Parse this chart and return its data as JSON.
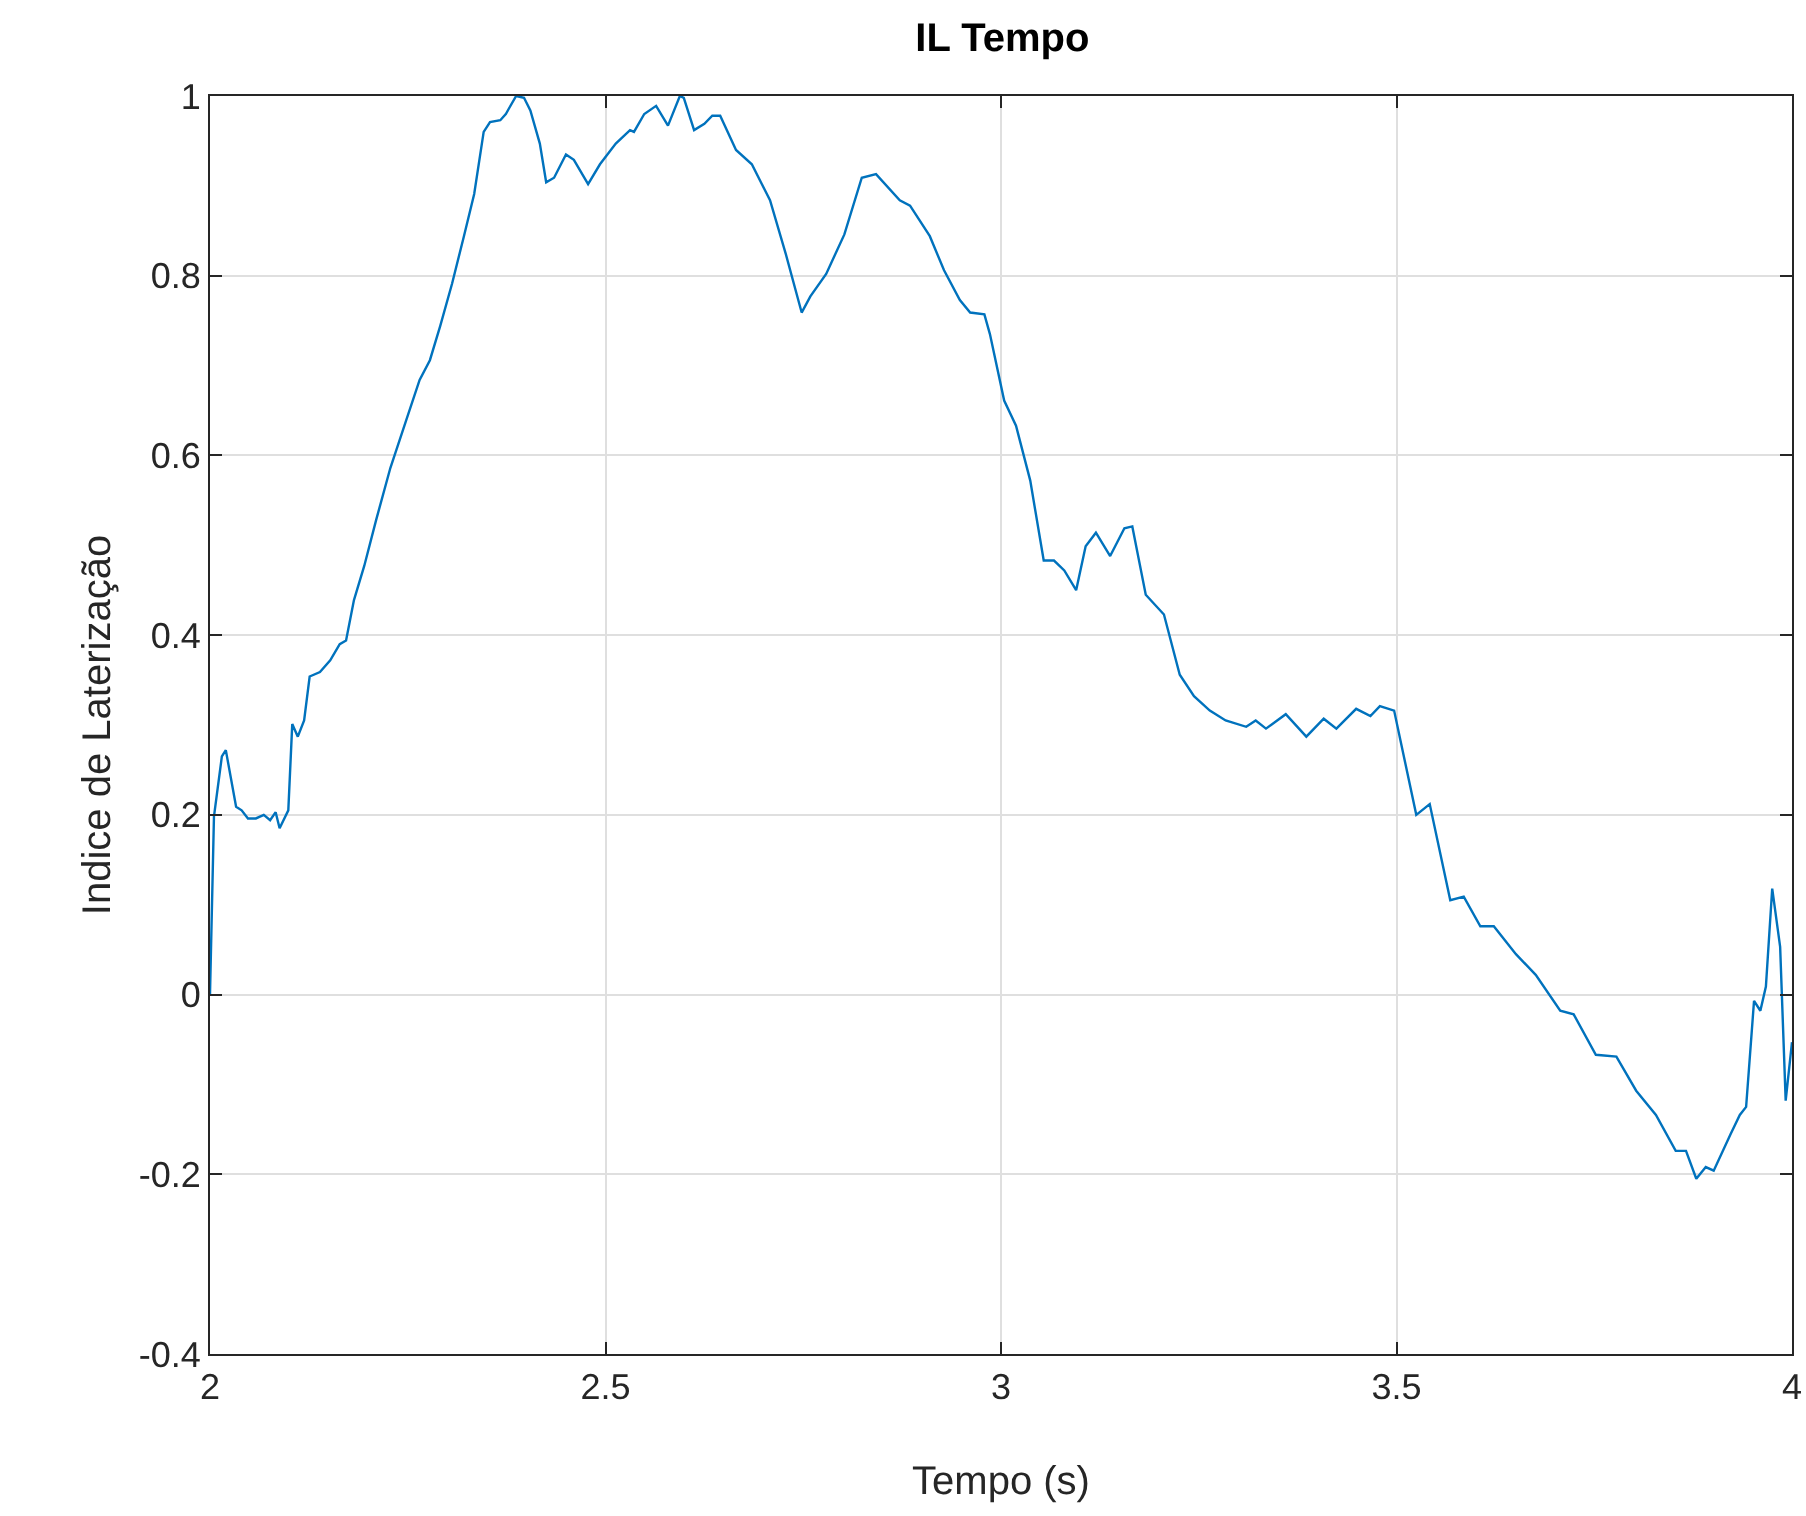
{
  "chart_data": {
    "type": "line",
    "title": "IL Tempo",
    "xlabel": "Tempo (s)",
    "ylabel": "Indice de Laterização",
    "x": [
      2.0,
      2.005,
      2.015,
      2.02,
      2.033,
      2.04,
      2.048,
      2.058,
      2.068,
      2.076,
      2.083,
      2.088,
      2.099,
      2.104,
      2.111,
      2.119,
      2.126,
      2.139,
      2.152,
      2.164,
      2.172,
      2.182,
      2.195,
      2.21,
      2.228,
      2.248,
      2.265,
      2.278,
      2.291,
      2.306,
      2.321,
      2.334,
      2.346,
      2.354,
      2.367,
      2.374,
      2.387,
      2.397,
      2.405,
      2.417,
      2.425,
      2.435,
      2.45,
      2.46,
      2.478,
      2.493,
      2.513,
      2.531,
      2.536,
      2.549,
      2.564,
      2.579,
      2.594,
      2.599,
      2.612,
      2.625,
      2.635,
      2.645,
      2.665,
      2.685,
      2.708,
      2.728,
      2.748,
      2.759,
      2.779,
      2.802,
      2.824,
      2.842,
      2.872,
      2.885,
      2.91,
      2.928,
      2.948,
      2.961,
      2.979,
      2.986,
      3.004,
      3.019,
      3.037,
      3.054,
      3.067,
      3.08,
      3.095,
      3.107,
      3.12,
      3.138,
      3.156,
      3.166,
      3.183,
      3.206,
      3.226,
      3.244,
      3.264,
      3.284,
      3.31,
      3.322,
      3.335,
      3.36,
      3.386,
      3.408,
      3.424,
      3.449,
      3.467,
      3.479,
      3.497,
      3.525,
      3.542,
      3.568,
      3.585,
      3.606,
      3.623,
      3.651,
      3.676,
      3.707,
      3.724,
      3.752,
      3.778,
      3.803,
      3.828,
      3.853,
      3.866,
      3.879,
      3.891,
      3.901,
      3.922,
      3.934,
      3.942,
      3.952,
      3.96,
      3.967,
      3.975,
      3.985,
      3.992,
      4.0
    ],
    "series": [
      {
        "color": "#0072bd",
        "values": [
          0,
          0.198,
          0.265,
          0.272,
          0.209,
          0.205,
          0.196,
          0.196,
          0.2,
          0.194,
          0.203,
          0.185,
          0.205,
          0.301,
          0.287,
          0.305,
          0.354,
          0.359,
          0.372,
          0.39,
          0.394,
          0.439,
          0.477,
          0.528,
          0.586,
          0.639,
          0.684,
          0.706,
          0.744,
          0.791,
          0.844,
          0.891,
          0.96,
          0.971,
          0.973,
          0.98,
          1.0,
          0.998,
          0.984,
          0.947,
          0.904,
          0.909,
          0.935,
          0.929,
          0.902,
          0.924,
          0.947,
          0.962,
          0.96,
          0.98,
          0.989,
          0.967,
          1.0,
          0.998,
          0.962,
          0.969,
          0.978,
          0.978,
          0.94,
          0.924,
          0.884,
          0.824,
          0.759,
          0.777,
          0.802,
          0.846,
          0.909,
          0.913,
          0.884,
          0.878,
          0.844,
          0.806,
          0.773,
          0.759,
          0.757,
          0.735,
          0.661,
          0.633,
          0.572,
          0.483,
          0.483,
          0.472,
          0.45,
          0.499,
          0.514,
          0.488,
          0.519,
          0.521,
          0.445,
          0.423,
          0.356,
          0.332,
          0.316,
          0.305,
          0.298,
          0.305,
          0.296,
          0.312,
          0.287,
          0.307,
          0.296,
          0.318,
          0.31,
          0.321,
          0.316,
          0.2,
          0.212,
          0.105,
          0.109,
          0.076,
          0.076,
          0.045,
          0.022,
          -0.018,
          -0.022,
          -0.067,
          -0.069,
          -0.107,
          -0.134,
          -0.174,
          -0.174,
          -0.205,
          -0.192,
          -0.196,
          -0.156,
          -0.134,
          -0.125,
          -0.007,
          -0.018,
          0.009,
          0.118,
          0.053,
          -0.118,
          -0.053
        ]
      }
    ],
    "xlim": [
      2,
      4
    ],
    "xticks": [
      2,
      2.5,
      3,
      3.5,
      4
    ],
    "ylim": [
      -0.4,
      1
    ],
    "yticks": [
      -0.4,
      -0.2,
      0,
      0.2,
      0.4,
      0.6,
      0.8,
      1
    ],
    "grid": true,
    "marker": "none",
    "line_style": "solid"
  }
}
